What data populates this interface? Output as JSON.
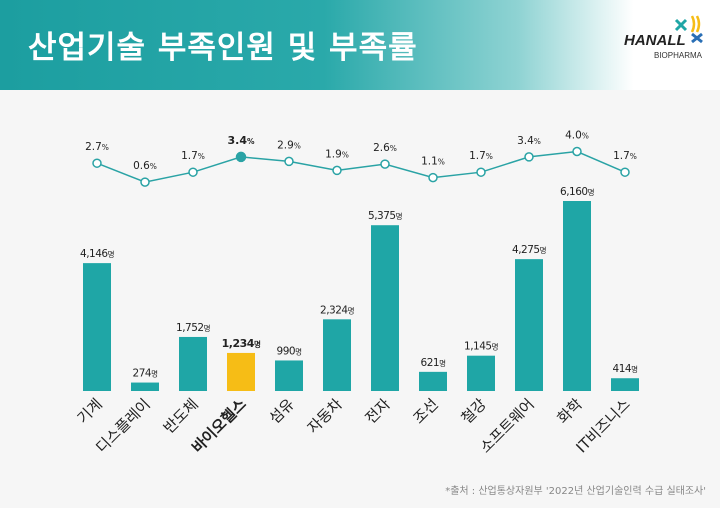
{
  "header": {
    "title": "산업기술 부족인원 및 부족률",
    "logo_text": "HANALL",
    "logo_sub": "BIOPHARMA"
  },
  "chart_data": {
    "type": "bar+line",
    "title": "산업기술 부족인원 및 부족률",
    "categories": [
      "기계",
      "디스플레이",
      "반도체",
      "바이오헬스",
      "섬유",
      "자동차",
      "전자",
      "조선",
      "철강",
      "소프트웨어",
      "화학",
      "IT비즈니스"
    ],
    "highlight": "바이오헬스",
    "series": [
      {
        "name": "부족인원",
        "unit": "명",
        "values": [
          4146,
          274,
          1752,
          1234,
          990,
          2324,
          5375,
          621,
          1145,
          4275,
          6160,
          414
        ],
        "labels": [
          "4,146",
          "274",
          "1,752",
          "1,234",
          "990",
          "2,324",
          "5,375",
          "621",
          "1,145",
          "4,275",
          "6,160",
          "414"
        ]
      },
      {
        "name": "부족률",
        "unit": "%",
        "values": [
          2.7,
          0.6,
          1.7,
          3.4,
          2.9,
          1.9,
          2.6,
          1.1,
          1.7,
          3.4,
          4.0,
          1.7
        ],
        "labels": [
          "2.7",
          "0.6",
          "1.7",
          "3.4",
          "2.9",
          "1.9",
          "2.6",
          "1.1",
          "1.7",
          "3.4",
          "4.0",
          "1.7"
        ]
      }
    ],
    "colors": {
      "bar": "#1fa6a6",
      "highlight": "#f6bd16",
      "line": "#2aa3a5"
    }
  },
  "source": "*출처 : 산업통상자원부 '2022년 산업기술인력 수급 실태조사'"
}
